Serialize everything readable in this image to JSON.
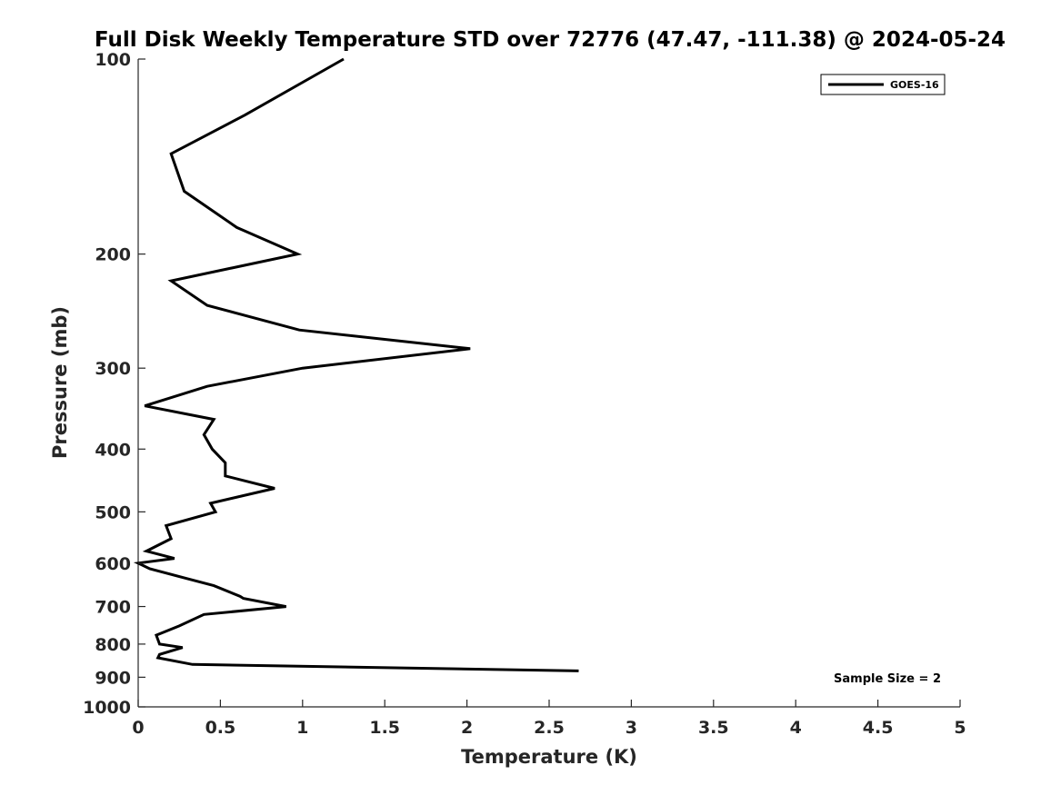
{
  "chart_data": {
    "type": "line",
    "title": "Full Disk Weekly Temperature STD over 72776 (47.47, -111.38) @ 2024-05-24",
    "xlabel": "Temperature (K)",
    "ylabel": "Pressure (mb)",
    "xlim": [
      0,
      5
    ],
    "ylim": [
      1000,
      100
    ],
    "y_scale": "log",
    "grid": false,
    "x_ticks": [
      "0",
      "0.5",
      "1",
      "1.5",
      "2",
      "2.5",
      "3",
      "3.5",
      "4",
      "4.5",
      "5"
    ],
    "y_ticks": [
      "100",
      "200",
      "300",
      "400",
      "500",
      "600",
      "700",
      "800",
      "900",
      "1000"
    ],
    "legend": {
      "position": "top-right",
      "entries": [
        "GOES-16"
      ]
    },
    "annotation": "Sample Size = 2",
    "series": [
      {
        "name": "GOES-16",
        "color": "#000000",
        "x": [
          1.25,
          0.65,
          0.2,
          0.28,
          0.6,
          0.97,
          0.2,
          0.42,
          0.98,
          2.02,
          1.0,
          0.42,
          0.04,
          0.46,
          0.4,
          0.45,
          0.53,
          0.53,
          0.83,
          0.44,
          0.47,
          0.17,
          0.2,
          0.05,
          0.22,
          0.0,
          0.07,
          0.46,
          0.62,
          0.64,
          0.9,
          0.4,
          0.25,
          0.11,
          0.13,
          0.27,
          0.13,
          0.12,
          0.33,
          2.68
        ],
        "y": [
          100,
          122,
          140,
          160,
          182,
          200,
          220,
          240,
          262,
          280,
          300,
          320,
          343,
          360,
          380,
          400,
          420,
          440,
          460,
          485,
          500,
          525,
          550,
          575,
          590,
          600,
          612,
          650,
          675,
          680,
          700,
          720,
          750,
          775,
          800,
          810,
          830,
          840,
          860,
          880
        ]
      }
    ]
  }
}
